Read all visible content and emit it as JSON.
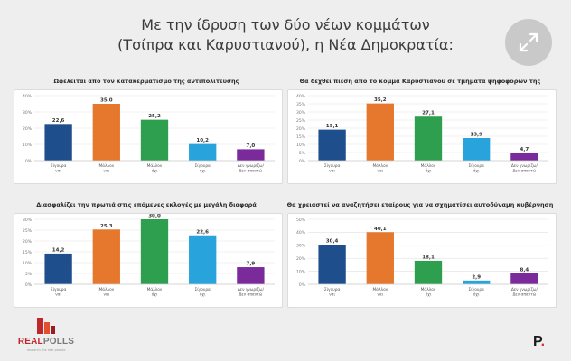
{
  "header": {
    "line1": "Με την ίδρυση των δύο νέων κομμάτων",
    "line2": "(Τσίπρα και Καρυστιανού), η Νέα Δημοκρατία:",
    "expand_icon": "expand-arrows-icon"
  },
  "colors": [
    "#1f4e8c",
    "#e6782e",
    "#2e9e4f",
    "#29a3dc",
    "#7b2a9c"
  ],
  "chart_data": [
    {
      "type": "bar",
      "title": "Ωφελείται από τον κατακερματισμό της αντιπολίτευσης",
      "categories": [
        [
          "Σίγουρα",
          "ναι"
        ],
        [
          "Μάλλον",
          "ναι"
        ],
        [
          "Μάλλον",
          "όχι"
        ],
        [
          "Σίγουρα",
          "όχι"
        ],
        [
          "Δεν γνωρίζω/",
          "Δεν απαντώ"
        ]
      ],
      "values": [
        22.6,
        35.0,
        25.2,
        10.2,
        7.0
      ],
      "value_labels": [
        "22,6",
        "35,0",
        "25,2",
        "10,2",
        "7,0"
      ],
      "ylim": [
        0,
        40
      ],
      "yticks": [
        "0%",
        "10%",
        "20%",
        "30%",
        "40%"
      ],
      "yticks_values": [
        0,
        10,
        20,
        30,
        40
      ]
    },
    {
      "type": "bar",
      "title": "Θα δεχθεί πίεση από το κόμμα Καρυστιανού σε τμήματα ψηφοφόρων της",
      "categories": [
        [
          "Σίγουρα",
          "ναι"
        ],
        [
          "Μάλλον",
          "ναι"
        ],
        [
          "Μάλλον",
          "όχι"
        ],
        [
          "Σίγουρα",
          "όχι"
        ],
        [
          "Δεν γνωρίζω/",
          "Δεν απαντώ"
        ]
      ],
      "values": [
        19.1,
        35.2,
        27.1,
        13.9,
        4.7
      ],
      "value_labels": [
        "19,1",
        "35,2",
        "27,1",
        "13,9",
        "4,7"
      ],
      "ylim": [
        0,
        40
      ],
      "yticks": [
        "0%",
        "5%",
        "10%",
        "15%",
        "20%",
        "25%",
        "30%",
        "35%",
        "40%"
      ],
      "yticks_values": [
        0,
        5,
        10,
        15,
        20,
        25,
        30,
        35,
        40
      ]
    },
    {
      "type": "bar",
      "title": "Διασφαλίζει την πρωτιά στις επόμενες εκλογές με μεγάλη διαφορά",
      "categories": [
        [
          "Σίγουρα",
          "ναι"
        ],
        [
          "Μάλλον",
          "ναι"
        ],
        [
          "Μάλλον",
          "όχι"
        ],
        [
          "Σίγουρα",
          "όχι"
        ],
        [
          "Δεν γνωρίζω/",
          "Δεν απαντώ"
        ]
      ],
      "values": [
        14.2,
        25.3,
        30.0,
        22.6,
        7.9
      ],
      "value_labels": [
        "14,2",
        "25,3",
        "30,0",
        "22,6",
        "7,9"
      ],
      "ylim": [
        0,
        30
      ],
      "yticks": [
        "0%",
        "5%",
        "10%",
        "15%",
        "20%",
        "25%",
        "30%"
      ],
      "yticks_values": [
        0,
        5,
        10,
        15,
        20,
        25,
        30
      ]
    },
    {
      "type": "bar",
      "title": "Θα χρειαστεί να αναζητήσει εταίρους για να σχηματίσει αυτοδύναμη κυβέρνηση",
      "categories": [
        [
          "Σίγουρα",
          "ναι"
        ],
        [
          "Μάλλον",
          "ναι"
        ],
        [
          "Μάλλον",
          "όχι"
        ],
        [
          "Σίγουρα",
          "όχι"
        ],
        [
          "Δεν γνωρίζω/",
          "Δεν απαντώ"
        ]
      ],
      "values": [
        30.4,
        40.1,
        18.1,
        2.9,
        8.4
      ],
      "value_labels": [
        "30,4",
        "40,1",
        "18,1",
        "2,9",
        "8,4"
      ],
      "ylim": [
        0,
        50
      ],
      "yticks": [
        "0%",
        "10%",
        "20%",
        "30%",
        "40%",
        "50%"
      ],
      "yticks_values": [
        0,
        10,
        20,
        30,
        40,
        50
      ]
    }
  ],
  "footer": {
    "brand_left_1": "REAL",
    "brand_left_2": "POLLS",
    "brand_left_tagline": "research the real people",
    "brand_right": "P",
    "brand_right_dot": "."
  }
}
